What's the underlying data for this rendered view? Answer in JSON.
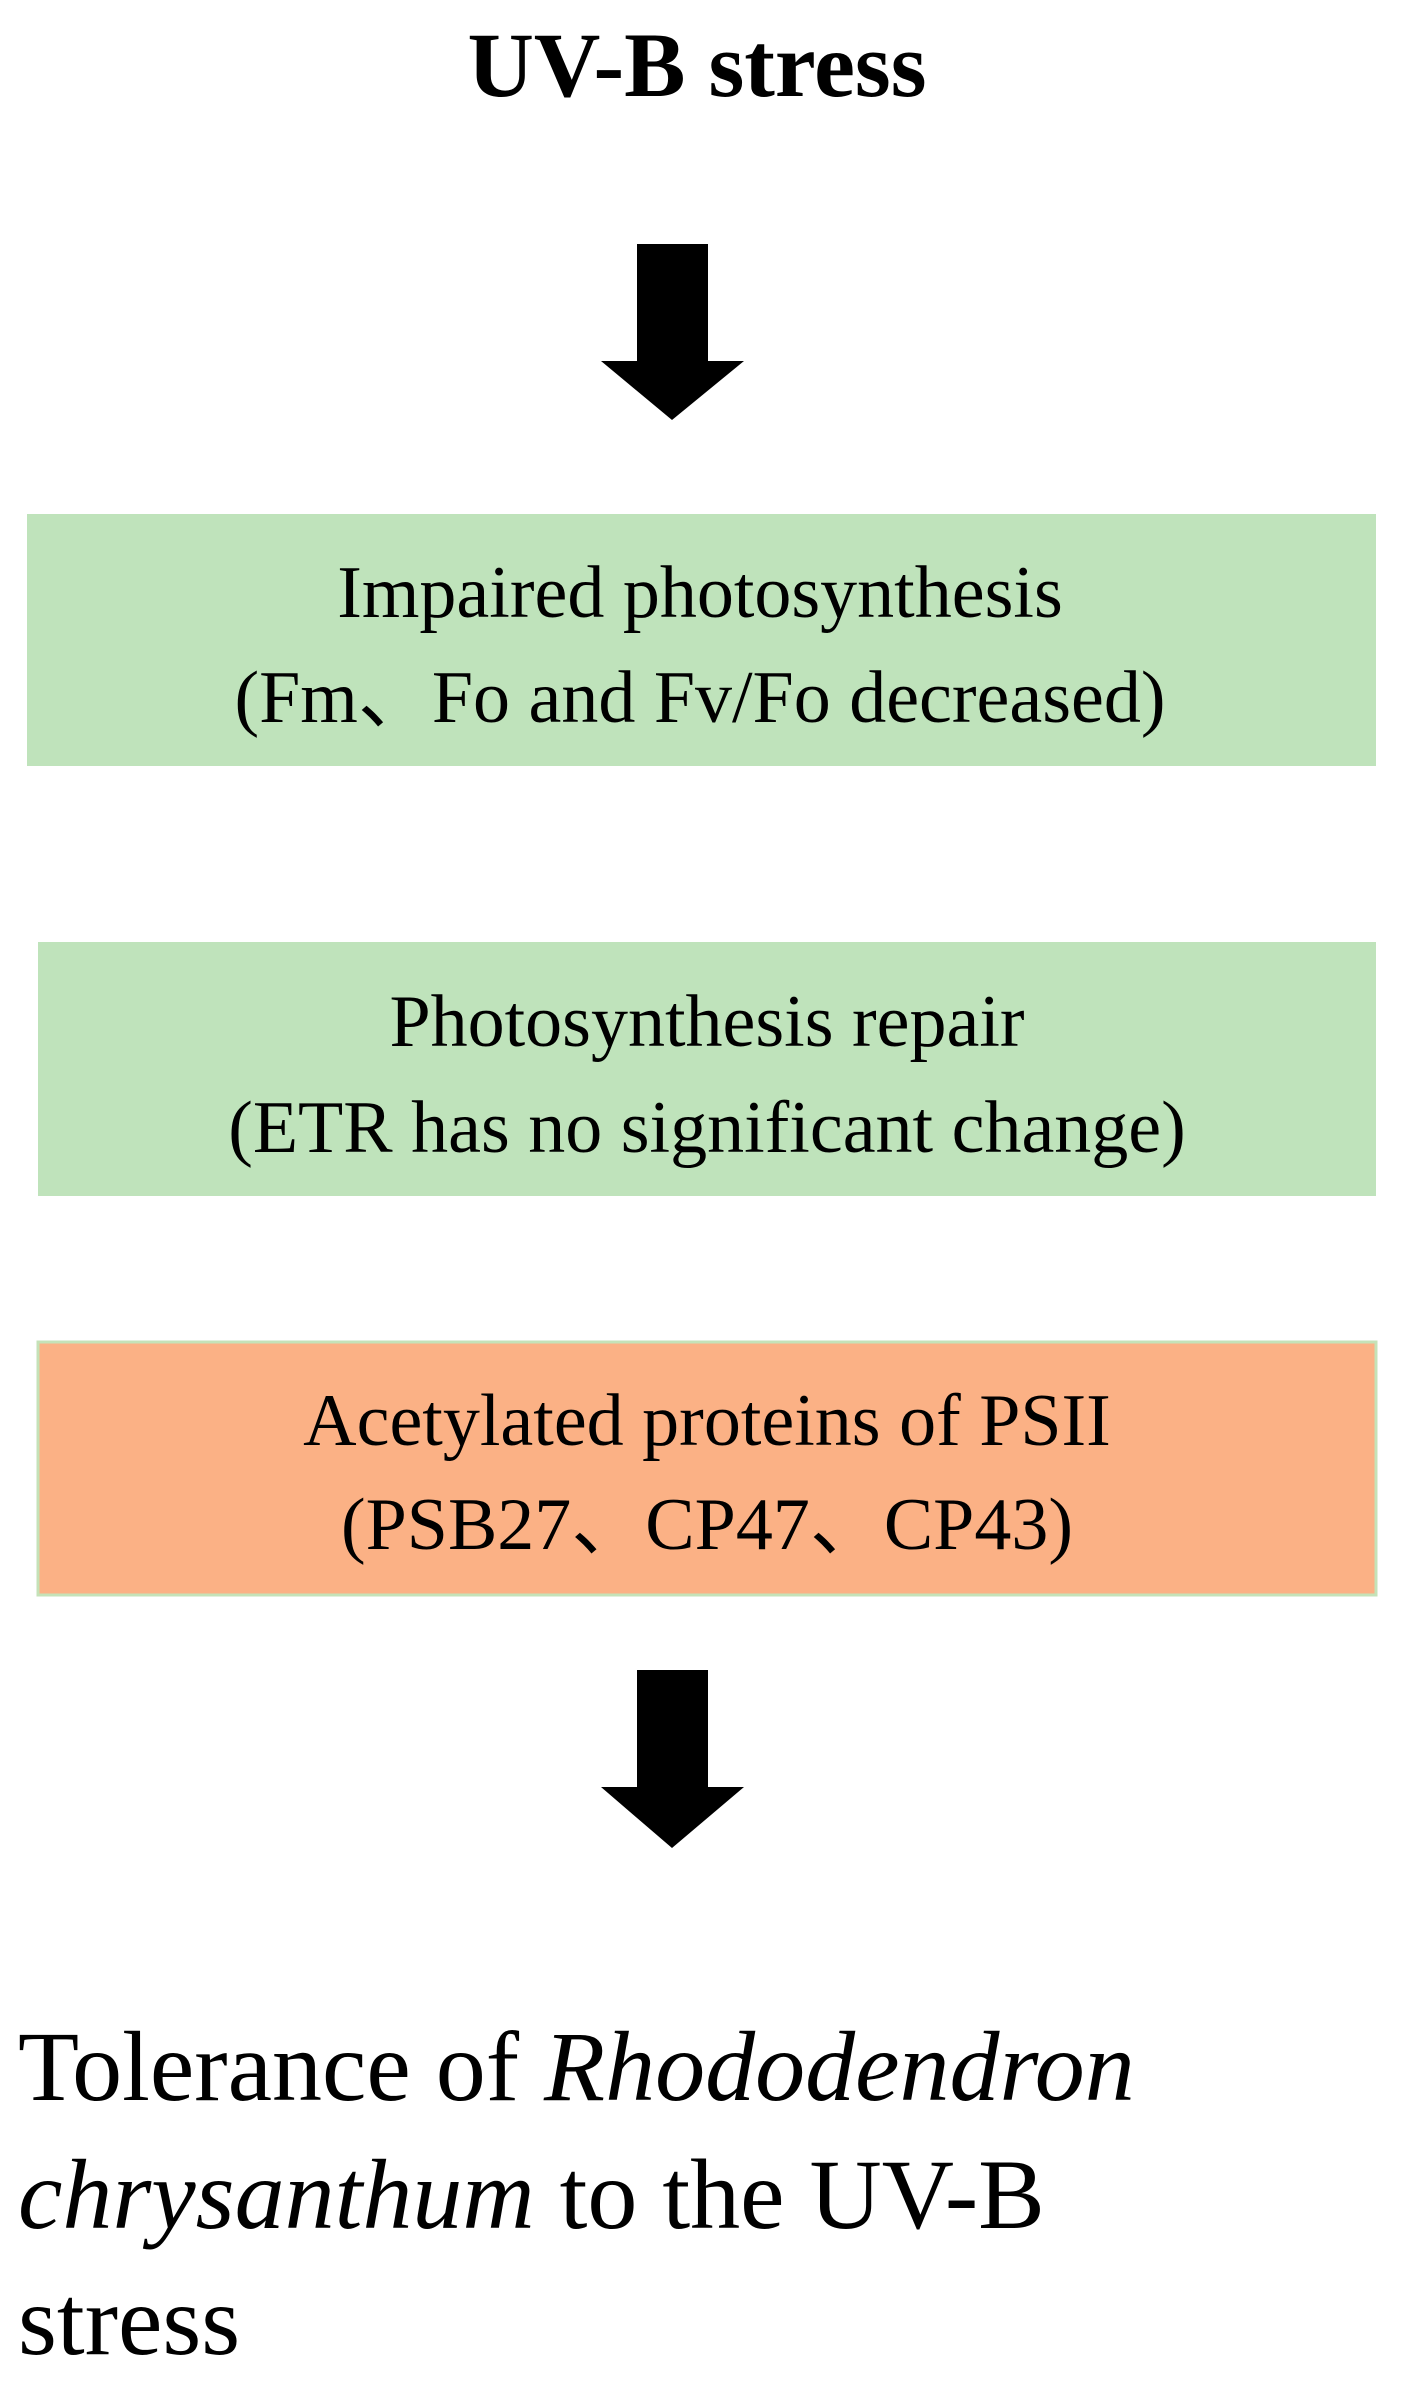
{
  "title": "UV-B stress",
  "boxes": [
    {
      "line1": "Impaired photosynthesis",
      "line2": "(Fm、Fo and Fv/Fo decreased)"
    },
    {
      "line1": "Photosynthesis repair",
      "line2": "(ETR has no significant change)"
    },
    {
      "line1": "Acetylated proteins of PSII",
      "line2": "(PSB27、CP47、CP43)"
    }
  ],
  "conclusion": {
    "line1": {
      "text": "Tolerance of",
      "italic": "Rhododendron"
    },
    "line2": {
      "italic": "chrysanthum",
      "text": "to the UV-B"
    },
    "line3": "stress"
  }
}
